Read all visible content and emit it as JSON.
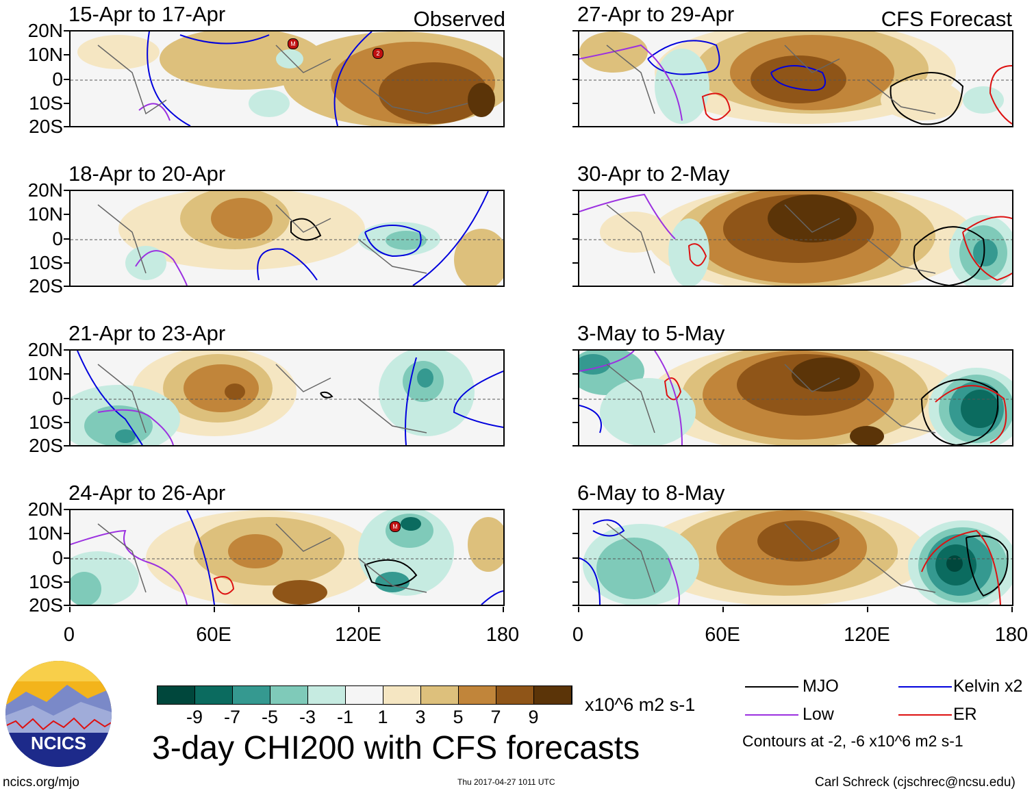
{
  "left_header": "Observed",
  "right_header": "CFS Forecast",
  "panels_left": [
    {
      "period": "15-Apr to 17-Apr"
    },
    {
      "period": "18-Apr to 20-Apr"
    },
    {
      "period": "21-Apr to 23-Apr"
    },
    {
      "period": "24-Apr to 26-Apr"
    }
  ],
  "panels_right": [
    {
      "period": "27-Apr to 29-Apr"
    },
    {
      "period": "30-Apr to 2-May"
    },
    {
      "period": "3-May to 5-May"
    },
    {
      "period": "6-May to 8-May"
    }
  ],
  "lat_labels": [
    "20N",
    "10N",
    "0",
    "10S",
    "20S"
  ],
  "lon_labels": [
    "0",
    "60E",
    "120E",
    "180"
  ],
  "colorbar": {
    "colors": [
      "#00473c",
      "#0b6b5f",
      "#359990",
      "#7fcab9",
      "#c6ebe1",
      "#f5f5f5",
      "#f5e6c2",
      "#ddc07c",
      "#c1853a",
      "#8f5518",
      "#5b3408"
    ],
    "labels": [
      "-9",
      "-7",
      "-5",
      "-3",
      "-1",
      "1",
      "3",
      "5",
      "7",
      "9"
    ],
    "units": "x10^6 m2 s-1"
  },
  "legend": {
    "items": [
      {
        "label": "MJO",
        "color": "#000000"
      },
      {
        "label": "Kelvin x2",
        "color": "#0000dd"
      },
      {
        "label": "Low",
        "color": "#9b30e0"
      },
      {
        "label": "ER",
        "color": "#dd1111"
      }
    ],
    "contours_note": "Contours at -2, -6 x10^6 m2 s-1"
  },
  "logo_text": "NCICS",
  "main_title": "3-day CHI200 with CFS forecasts",
  "footer": {
    "url": "ncics.org/mjo",
    "timestamp": "Thu 2017-04-27 1011 UTC",
    "author": "Carl Schreck (cjschrec@ncsu.edu)"
  },
  "storm_markers": [
    {
      "panel": "15-Apr to 17-Apr",
      "label": "M"
    },
    {
      "panel": "15-Apr to 17-Apr",
      "label": "2"
    },
    {
      "panel": "24-Apr to 26-Apr",
      "label": "M"
    }
  ]
}
